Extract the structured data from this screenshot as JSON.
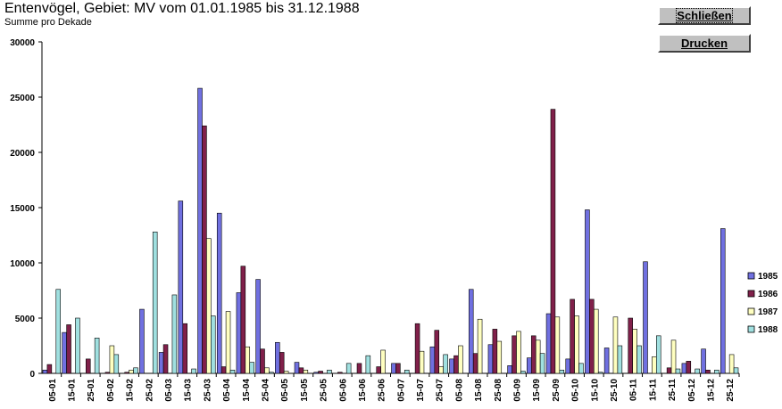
{
  "header": {
    "title": "Entenvögel, Gebiet: MV vom 01.01.1985 bis 31.12.1988",
    "subtitle": "Summe pro Dekade"
  },
  "buttons": {
    "close_label": "Schließen",
    "print_label": "Drucken"
  },
  "colors": {
    "1985": "#7070e0",
    "1986": "#80204a",
    "1987": "#ffffc0",
    "1988": "#a0e0e0"
  },
  "chart_data": {
    "type": "bar",
    "title": "Entenvögel, Gebiet: MV vom 01.01.1985 bis 31.12.1988",
    "subtitle": "Summe pro Dekade",
    "xlabel": "",
    "ylabel": "",
    "ylim": [
      0,
      30000
    ],
    "yticks": [
      0,
      5000,
      10000,
      15000,
      20000,
      25000,
      30000
    ],
    "grid": false,
    "legend_position": "right",
    "categories": [
      "05-01",
      "15-01",
      "25-01",
      "05-02",
      "15-02",
      "25-02",
      "05-03",
      "15-03",
      "25-03",
      "05-04",
      "15-04",
      "25-04",
      "05-05",
      "15-05",
      "25-05",
      "05-06",
      "15-06",
      "25-06",
      "05-07",
      "15-07",
      "25-07",
      "05-08",
      "15-08",
      "25-08",
      "05-09",
      "15-09",
      "25-09",
      "05-10",
      "15-10",
      "25-10",
      "05-11",
      "15-11",
      "25-11",
      "05-12",
      "15-12",
      "25-12"
    ],
    "series": [
      {
        "name": "1985",
        "values": [
          300,
          3700,
          0,
          0,
          0,
          5800,
          1900,
          15600,
          25800,
          14500,
          7300,
          8500,
          2800,
          1000,
          100,
          0,
          0,
          0,
          900,
          0,
          2400,
          1300,
          7600,
          2600,
          700,
          1400,
          5400,
          1300,
          14800,
          2300,
          0,
          10100,
          0,
          900,
          2200,
          13100
        ]
      },
      {
        "name": "1986",
        "values": [
          800,
          4400,
          1300,
          100,
          100,
          0,
          2600,
          4500,
          22400,
          600,
          9700,
          2200,
          1900,
          500,
          200,
          100,
          900,
          600,
          900,
          4500,
          3900,
          1600,
          1800,
          4000,
          3400,
          3400,
          23900,
          6700,
          6700,
          0,
          5000,
          0,
          500,
          1100,
          300,
          0
        ]
      },
      {
        "name": "1987",
        "values": [
          0,
          0,
          0,
          2500,
          300,
          0,
          0,
          0,
          12200,
          5600,
          2400,
          500,
          200,
          300,
          0,
          0,
          0,
          2100,
          0,
          2000,
          600,
          2500,
          4900,
          2900,
          3800,
          3000,
          5100,
          5200,
          5800,
          5100,
          4000,
          1500,
          3000,
          0,
          0,
          1700
        ]
      },
      {
        "name": "1988",
        "values": [
          7600,
          5000,
          3200,
          1700,
          500,
          12800,
          7100,
          400,
          5200,
          300,
          1000,
          100,
          0,
          0,
          300,
          900,
          1600,
          0,
          300,
          0,
          1700,
          0,
          0,
          0,
          200,
          1800,
          300,
          900,
          100,
          2500,
          2500,
          3400,
          400,
          400,
          300,
          500
        ]
      }
    ]
  }
}
